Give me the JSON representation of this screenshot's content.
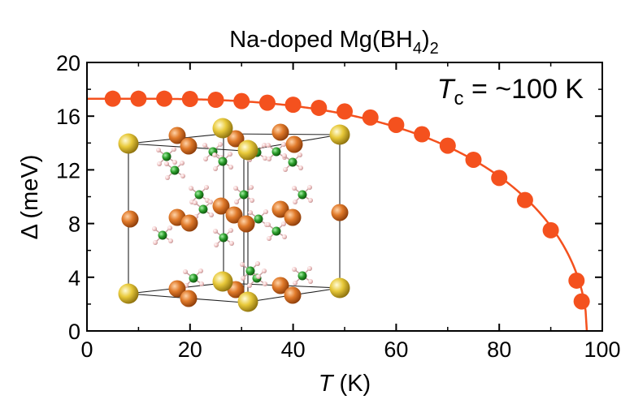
{
  "chart_data": {
    "type": "line",
    "title_main": "Na-doped Mg(BH",
    "title_sub": "4",
    "title_end": ")",
    "title_sub2": "2",
    "xlabel_var": "T",
    "xlabel_unit": " (K)",
    "ylabel": "Δ (meV)",
    "xlim": [
      0,
      100
    ],
    "ylim": [
      0,
      20
    ],
    "x_ticks": [
      "0",
      "20",
      "40",
      "60",
      "80",
      "100"
    ],
    "y_ticks": [
      "0",
      "4",
      "8",
      "12",
      "16",
      "20"
    ],
    "annotation_var": "T",
    "annotation_sub": "c",
    "annotation_text": " = ~100 K",
    "series": [
      {
        "name": "Δ(T)",
        "color": "#f4511e",
        "x": [
          5,
          10,
          15,
          20,
          25,
          30,
          35,
          40,
          45,
          50,
          55,
          60,
          65,
          70,
          75,
          80,
          85,
          90,
          95,
          96
        ],
        "y": [
          17.3,
          17.3,
          17.3,
          17.28,
          17.22,
          17.12,
          17.0,
          16.85,
          16.62,
          16.35,
          15.9,
          15.35,
          14.65,
          13.8,
          12.75,
          11.4,
          9.75,
          7.5,
          3.75,
          2.2
        ]
      }
    ],
    "fit_curve": {
      "tc": 97,
      "delta0": 17.3
    }
  },
  "inset": {
    "description_label": "Na-doped Mg(BH4)2 crystal structure",
    "colors": {
      "mg": "#e07a2a",
      "na": "#e8c93a",
      "b": "#2a9d2a",
      "h": "#f2c6c6"
    }
  }
}
